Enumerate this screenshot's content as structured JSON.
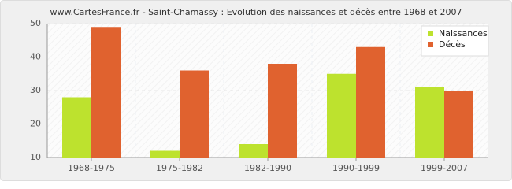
{
  "chart_data": {
    "type": "bar",
    "title": "www.CartesFrance.fr - Saint-Chamassy : Evolution des naissances et décès entre 1968 et 2007",
    "categories": [
      "1968-1975",
      "1975-1982",
      "1982-1990",
      "1990-1999",
      "1999-2007"
    ],
    "series": [
      {
        "name": "Naissances",
        "color": "#bde22e",
        "values": [
          28,
          12,
          14,
          35,
          31
        ]
      },
      {
        "name": "Décès",
        "color": "#e0622f",
        "values": [
          49,
          36,
          38,
          43,
          30
        ]
      }
    ],
    "ylim": [
      10,
      50
    ],
    "yticks": [
      10,
      20,
      30,
      40,
      50
    ],
    "grid": true,
    "legend": "upper-right"
  }
}
